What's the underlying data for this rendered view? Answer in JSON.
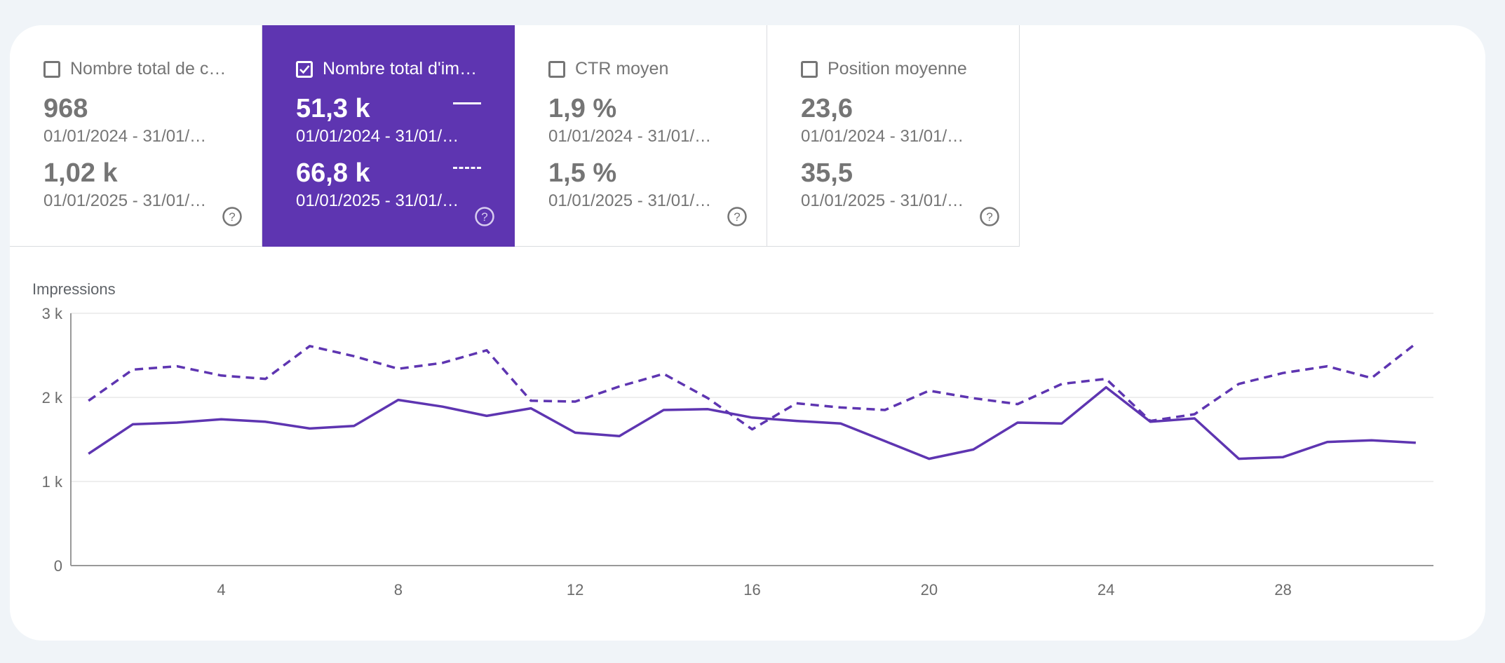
{
  "metrics": [
    {
      "label": "Nombre total de clics",
      "display_label": "Nombre total de c…",
      "checked": false,
      "value_2024": "968",
      "range_2024": "01/01/2024 - 31/01/…",
      "value_2025": "1,02 k",
      "range_2025": "01/01/2025 - 31/01/…",
      "help_icon": "help-circle-icon"
    },
    {
      "label": "Nombre total d'impressions",
      "display_label": "Nombre total d'im…",
      "checked": true,
      "value_2024": "51,3 k",
      "range_2024": "01/01/2024 - 31/01/…",
      "value_2025": "66,8 k",
      "range_2025": "01/01/2025 - 31/01/…",
      "help_icon": "help-circle-icon"
    },
    {
      "label": "CTR moyen",
      "display_label": "CTR moyen",
      "checked": false,
      "value_2024": "1,9 %",
      "range_2024": "01/01/2024 - 31/01/…",
      "value_2025": "1,5 %",
      "range_2025": "01/01/2025 - 31/01/…",
      "help_icon": "help-circle-icon"
    },
    {
      "label": "Position moyenne",
      "display_label": "Position moyenne",
      "checked": false,
      "value_2024": "23,6",
      "range_2024": "01/01/2024 - 31/01/…",
      "value_2025": "35,5",
      "range_2025": "01/01/2025 - 31/01/…",
      "help_icon": "help-circle-icon"
    }
  ],
  "colors": {
    "accent": "#5e35b1",
    "background": "#f0f4f8",
    "grid": "#e8e8e8"
  },
  "chart_data": {
    "type": "line",
    "ylabel": "Impressions",
    "ylim": [
      0,
      3000
    ],
    "y_ticks": [
      0,
      1000,
      2000,
      3000
    ],
    "y_tick_labels": [
      "0",
      "1 k",
      "2 k",
      "3 k"
    ],
    "x_ticks": [
      4,
      8,
      12,
      16,
      20,
      24,
      28
    ],
    "x_tick_labels": [
      "4",
      "8",
      "12",
      "16",
      "20",
      "24",
      "28"
    ],
    "xlim": [
      0.6,
      31.4
    ],
    "grid": true,
    "x": [
      1,
      2,
      3,
      4,
      5,
      6,
      7,
      8,
      9,
      10,
      11,
      12,
      13,
      14,
      15,
      16,
      17,
      18,
      19,
      20,
      21,
      22,
      23,
      24,
      25,
      26,
      27,
      28,
      29,
      30,
      31
    ],
    "series": [
      {
        "style": "solid",
        "values": [
          1330,
          1680,
          1700,
          1740,
          1710,
          1630,
          1660,
          1970,
          1890,
          1780,
          1870,
          1580,
          1540,
          1850,
          1860,
          1760,
          1720,
          1690,
          1480,
          1270,
          1380,
          1700,
          1690,
          2120,
          1710,
          1750,
          1270,
          1290,
          1470,
          1490,
          1460
        ]
      },
      {
        "style": "dashed",
        "values": [
          1960,
          2330,
          2370,
          2260,
          2220,
          2610,
          2490,
          2340,
          2410,
          2560,
          1960,
          1950,
          2130,
          2280,
          1990,
          1620,
          1930,
          1880,
          1850,
          2080,
          1990,
          1920,
          2160,
          2220,
          1720,
          1800,
          2160,
          2290,
          2370,
          2230,
          2640
        ]
      }
    ]
  }
}
